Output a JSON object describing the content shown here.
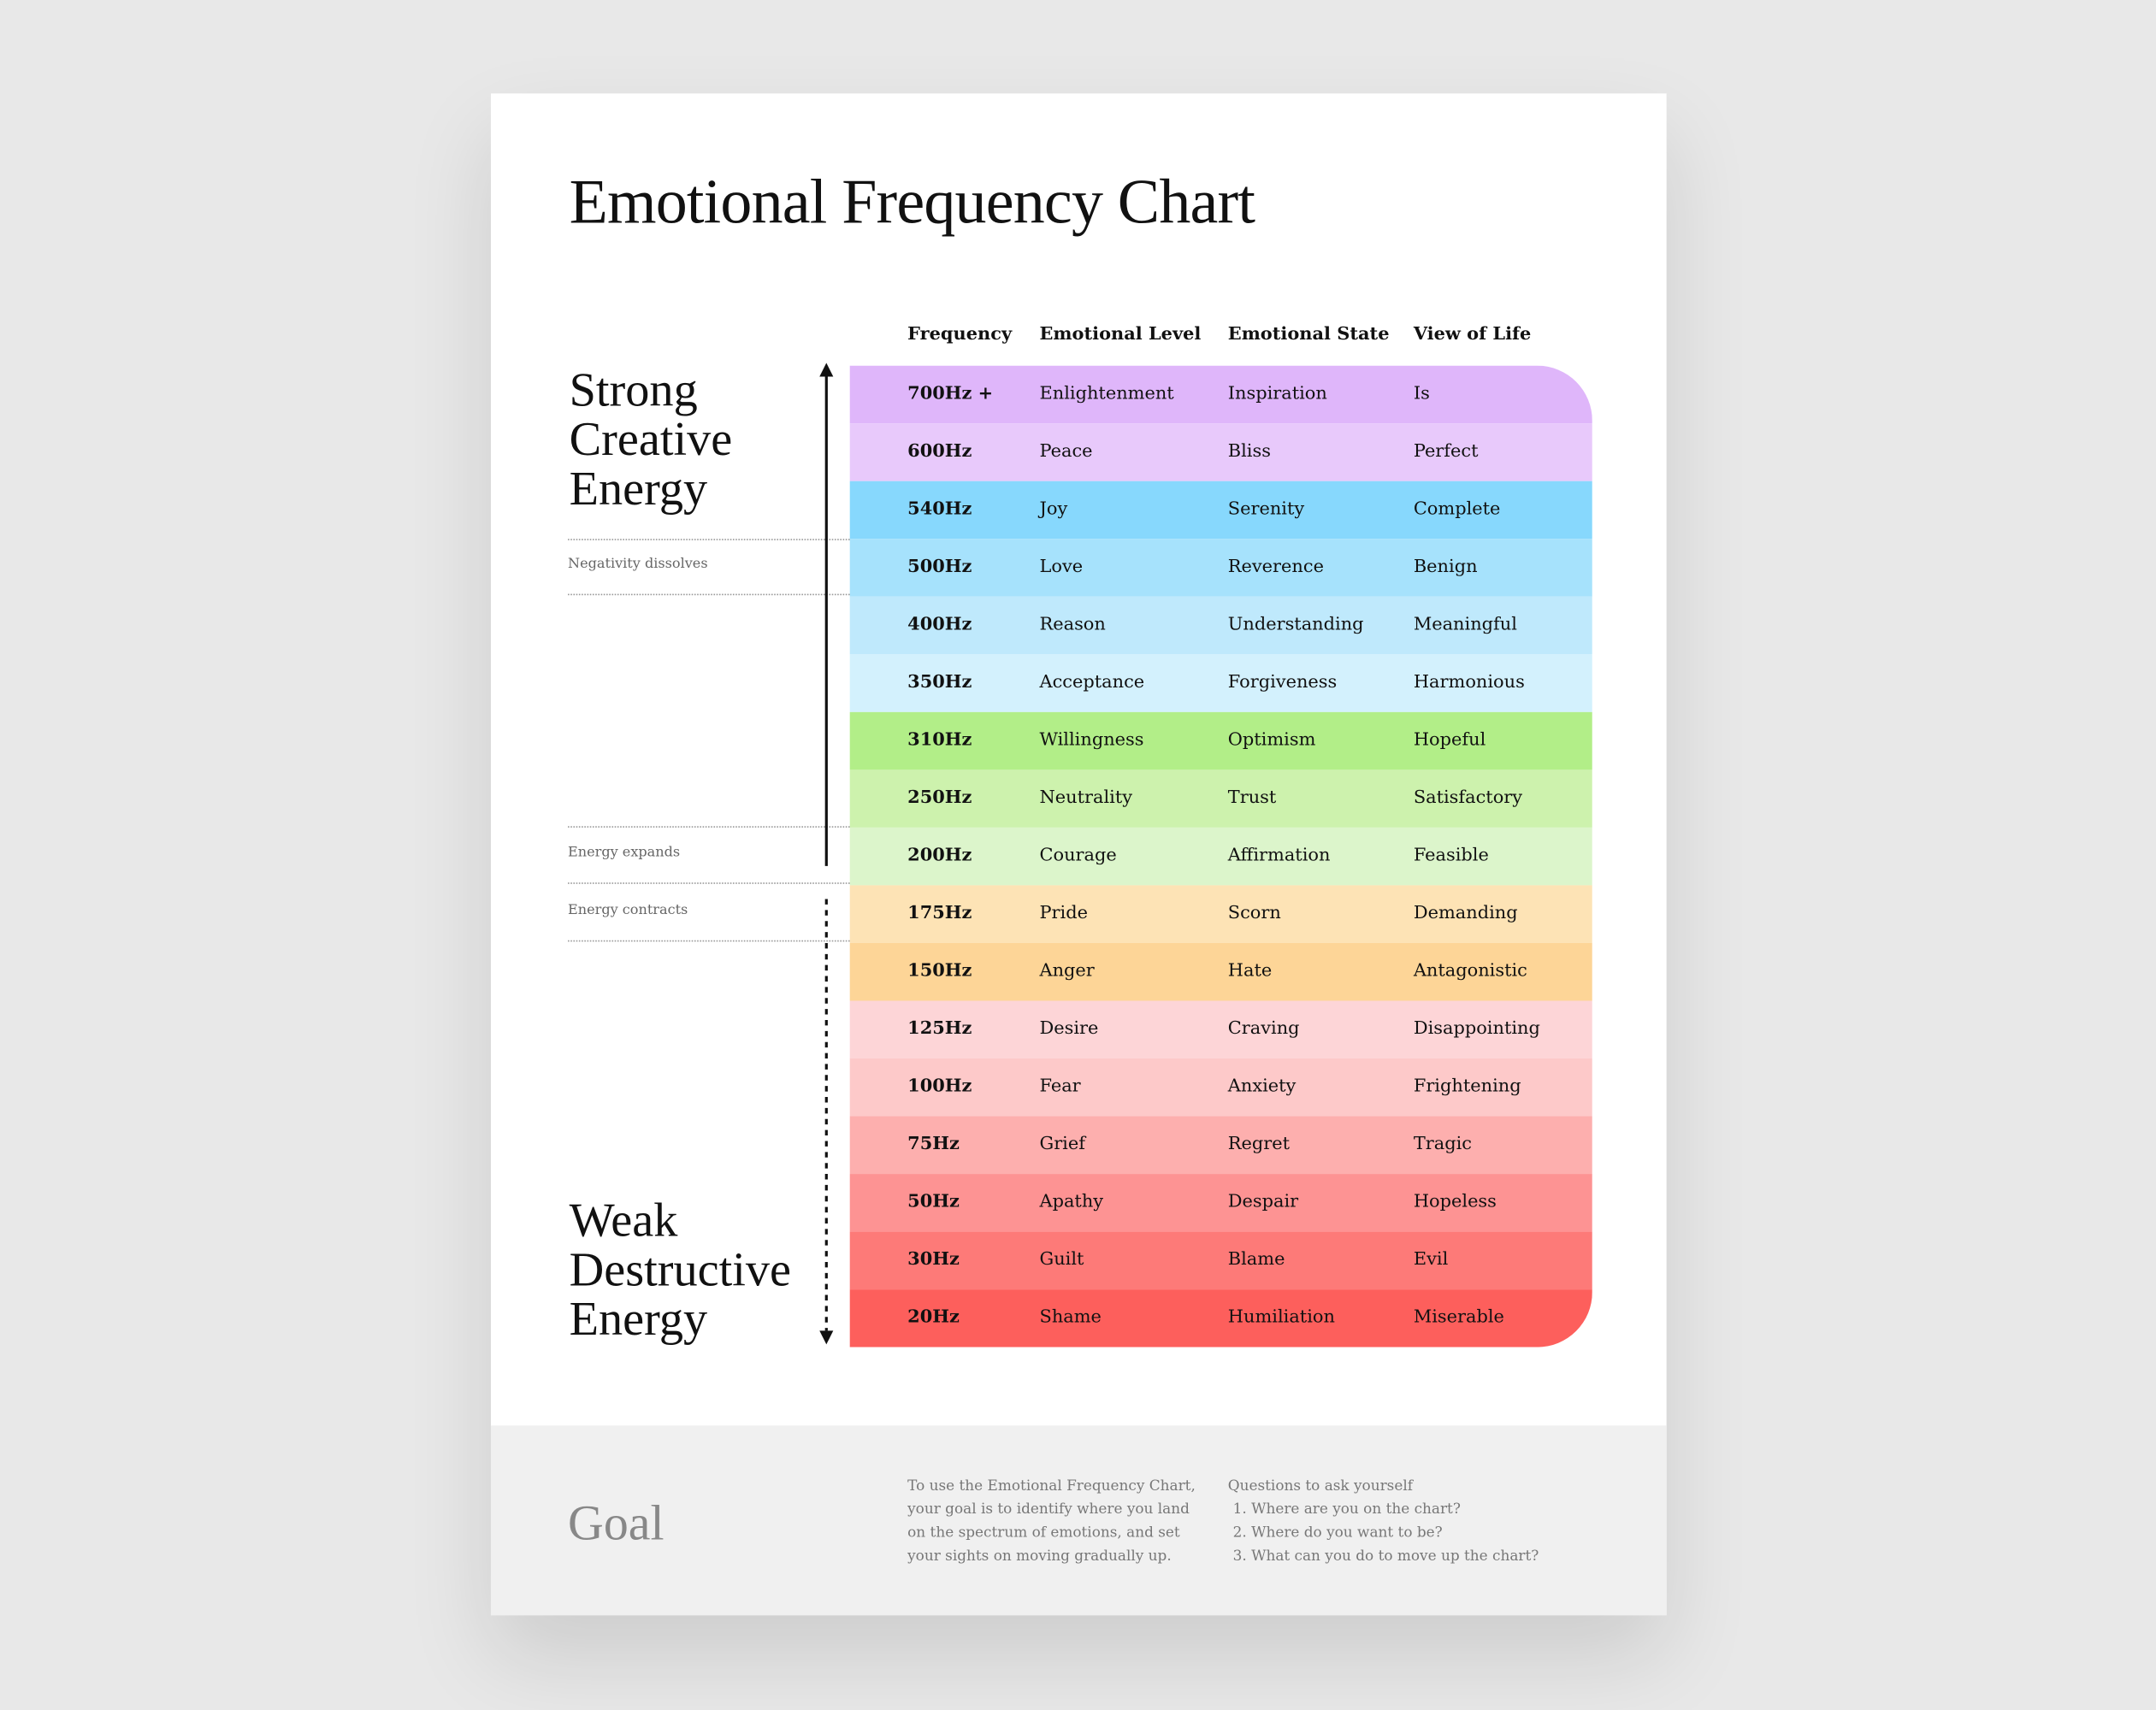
{
  "title": "Emotional Frequency Chart",
  "headers": [
    "Frequency",
    "Emotional Level",
    "Emotional State",
    "View of Life"
  ],
  "rows": [
    {
      "frequency": "700Hz +",
      "level": "Enlightenment",
      "state": "Inspiration",
      "view": "Is",
      "color": "#dfb6fa"
    },
    {
      "frequency": "600Hz",
      "level": "Peace",
      "state": "Bliss",
      "view": "Perfect",
      "color": "#e8c9fb"
    },
    {
      "frequency": "540Hz",
      "level": "Joy",
      "state": "Serenity",
      "view": "Complete",
      "color": "#87d8fd"
    },
    {
      "frequency": "500Hz",
      "level": "Love",
      "state": "Reverence",
      "view": "Benign",
      "color": "#a6e2fc"
    },
    {
      "frequency": "400Hz",
      "level": "Reason",
      "state": "Understanding",
      "view": "Meaningful",
      "color": "#bfe9fc"
    },
    {
      "frequency": "350Hz",
      "level": "Acceptance",
      "state": "Forgiveness",
      "view": "Harmonious",
      "color": "#d3f1fd"
    },
    {
      "frequency": "310Hz",
      "level": "Willingness",
      "state": "Optimism",
      "view": "Hopeful",
      "color": "#b2ee88"
    },
    {
      "frequency": "250Hz",
      "level": "Neutrality",
      "state": "Trust",
      "view": "Satisfactory",
      "color": "#cdf2ad"
    },
    {
      "frequency": "200Hz",
      "level": "Courage",
      "state": "Affirmation",
      "view": "Feasible",
      "color": "#dcf5cb"
    },
    {
      "frequency": "175Hz",
      "level": "Pride",
      "state": "Scorn",
      "view": "Demanding",
      "color": "#fde3b5"
    },
    {
      "frequency": "150Hz",
      "level": "Anger",
      "state": "Hate",
      "view": "Antagonistic",
      "color": "#fdd597"
    },
    {
      "frequency": "125Hz",
      "level": "Desire",
      "state": "Craving",
      "view": "Disappointing",
      "color": "#fdd5d7"
    },
    {
      "frequency": "100Hz",
      "level": "Fear",
      "state": "Anxiety",
      "view": "Frightening",
      "color": "#fdc9c9"
    },
    {
      "frequency": "75Hz",
      "level": "Grief",
      "state": "Regret",
      "view": "Tragic",
      "color": "#fdafae"
    },
    {
      "frequency": "50Hz",
      "level": "Apathy",
      "state": "Despair",
      "view": "Hopeless",
      "color": "#fd9393"
    },
    {
      "frequency": "30Hz",
      "level": "Guilt",
      "state": "Blame",
      "view": "Evil",
      "color": "#fd7a78"
    },
    {
      "frequency": "20Hz",
      "level": "Shame",
      "state": "Humiliation",
      "view": "Miserable",
      "color": "#fd5f5c"
    }
  ],
  "side": {
    "strong": [
      "Strong",
      "Creative",
      "Energy"
    ],
    "weak": [
      "Weak",
      "Destructive",
      "Energy"
    ],
    "negativity": "Negativity dissolves",
    "expands": "Energy expands",
    "contracts": "Energy contracts"
  },
  "footer": {
    "goal": "Goal",
    "description": [
      "To use the Emotional Frequency Chart,",
      "your goal is to identify where you land",
      "on the spectrum of emotions, and set",
      "your sights on moving gradually up."
    ],
    "questions_title": "Questions to ask yourself",
    "questions": [
      "Where are you on the chart?",
      "Where do you want to be?",
      "What can you do to move up the chart?"
    ]
  }
}
